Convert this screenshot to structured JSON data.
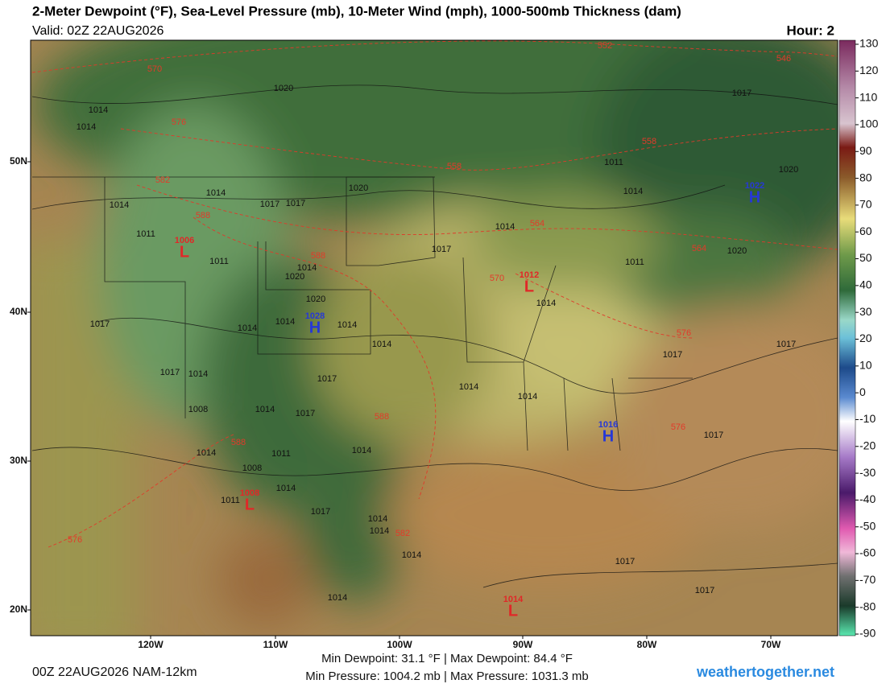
{
  "header": {
    "title": "2-Meter Dewpoint (°F), Sea-Level Pressure (mb), 10-Meter Wind (mph), 1000-500mb Thickness (dam)",
    "valid": "Valid: 02Z 22AUG2026",
    "hour": "Hour: 2"
  },
  "map": {
    "lat_labels": [
      "50N",
      "40N",
      "30N",
      "20N"
    ],
    "lon_labels": [
      "120W",
      "110W",
      "100W",
      "90W",
      "80W",
      "70W"
    ],
    "pressure_centers": [
      {
        "letter": "H",
        "value": "1022"
      },
      {
        "letter": "L",
        "value": "1006"
      },
      {
        "letter": "H",
        "value": "1028"
      },
      {
        "letter": "L",
        "value": "1012"
      },
      {
        "letter": "H",
        "value": "1016"
      },
      {
        "letter": "L",
        "value": "1008"
      },
      {
        "letter": "L",
        "value": "1014"
      }
    ],
    "isobar_labels": [
      "1014",
      "1014",
      "1020",
      "1017",
      "1011",
      "1014",
      "1020",
      "1014",
      "1014",
      "1017",
      "1017",
      "1020",
      "1011",
      "1011",
      "1014",
      "1017",
      "1014",
      "1011",
      "1020",
      "1020",
      "1020",
      "1014",
      "1017",
      "1014",
      "1014",
      "1014",
      "1014",
      "1017",
      "1017",
      "1017",
      "1014",
      "1017",
      "1014",
      "1014",
      "1008",
      "1014",
      "1017",
      "1017",
      "1014",
      "1011",
      "1014",
      "1008",
      "1014",
      "1011",
      "1017",
      "1014",
      "1014",
      "1014",
      "1017",
      "1014",
      "1017"
    ],
    "thickness_labels": [
      "570",
      "552",
      "546",
      "576",
      "558",
      "558",
      "582",
      "588",
      "564",
      "564",
      "588",
      "570",
      "576",
      "588",
      "576",
      "588",
      "582",
      "576"
    ]
  },
  "colorbar": {
    "ticks": [
      130,
      120,
      110,
      100,
      90,
      80,
      70,
      60,
      50,
      40,
      30,
      20,
      10,
      0,
      -10,
      -20,
      -30,
      -40,
      -50,
      -60,
      -70,
      -80,
      -90
    ]
  },
  "footer": {
    "run": "00Z 22AUG2026 NAM-12km",
    "dewpoint": "Min Dewpoint:  31.1 °F | Max Dewpoint:  84.4 °F",
    "pressure": "Min Pressure: 1004.2 mb | Max Pressure: 1031.3 mb",
    "credit": "weathertogether.net"
  }
}
